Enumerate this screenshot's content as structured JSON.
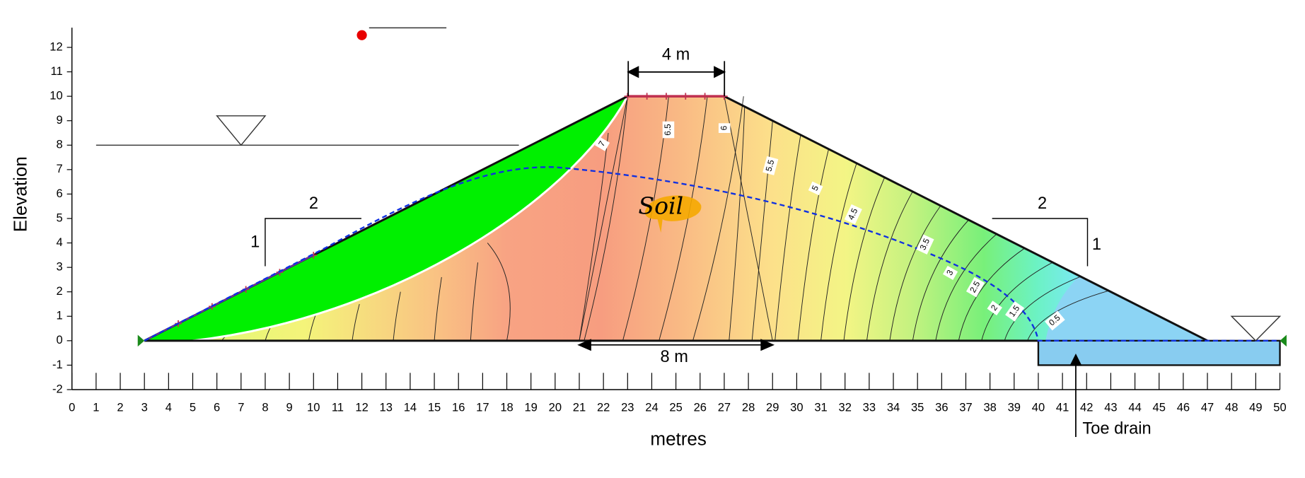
{
  "axes": {
    "x_label": "metres",
    "y_label": "Elevation",
    "xticks": [
      0,
      1,
      2,
      3,
      4,
      5,
      6,
      7,
      8,
      9,
      10,
      11,
      12,
      13,
      14,
      15,
      16,
      17,
      18,
      19,
      20,
      21,
      22,
      23,
      24,
      25,
      26,
      27,
      28,
      29,
      30,
      31,
      32,
      33,
      34,
      35,
      36,
      37,
      38,
      39,
      40,
      41,
      42,
      43,
      44,
      45,
      46,
      47,
      48,
      49,
      50
    ],
    "yticks": [
      -2,
      -1,
      0,
      1,
      2,
      3,
      4,
      5,
      6,
      7,
      8,
      9,
      10,
      11,
      12
    ]
  },
  "dimensions": {
    "crest_width": "4 m",
    "base_width": "8 m"
  },
  "slopes": {
    "upstream": {
      "horizontal": "2",
      "vertical": "1"
    },
    "downstream": {
      "horizontal": "2",
      "vertical": "1"
    }
  },
  "contour_labels": [
    "7",
    "6.5",
    "6",
    "5.5",
    "5",
    "4.5",
    "3.5",
    "3",
    "2.5",
    "2",
    "1.5",
    "0.5"
  ],
  "annotations": {
    "toe_drain": "Toe drain",
    "material": "Soil"
  }
}
